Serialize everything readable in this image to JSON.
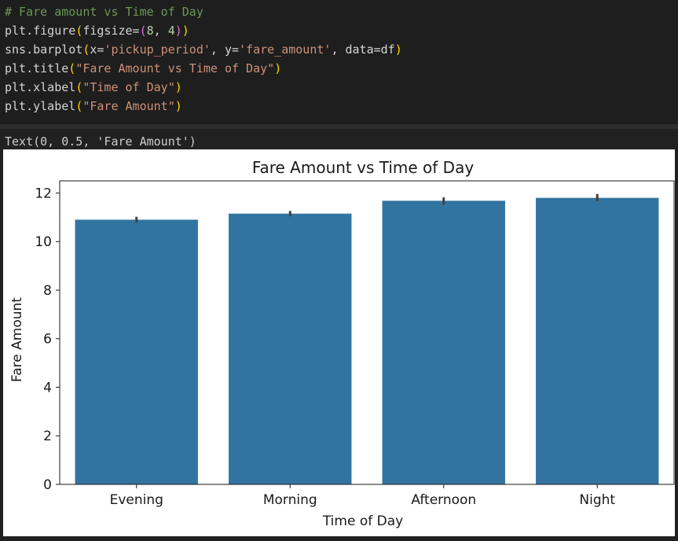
{
  "code": {
    "comment": "# Fare amount vs Time of Day",
    "line2_fn": "plt.figure",
    "line2_arg": "figsize=",
    "line2_num1": "8",
    "line2_comma": ", ",
    "line2_num2": "4",
    "line3_fn": "sns.barplot",
    "line3_a1": "x=",
    "line3_s1": "'pickup_period'",
    "line3_a2": ", y=",
    "line3_s2": "'fare_amount'",
    "line3_a3": ", data=df",
    "line4_fn": "plt.title",
    "line4_s": "\"Fare Amount vs Time of Day\"",
    "line5_fn": "plt.xlabel",
    "line5_s": "\"Time of Day\"",
    "line6_fn": "plt.ylabel",
    "line6_s": "\"Fare Amount\""
  },
  "output": {
    "text": "Text(0, 0.5, 'Fare Amount')"
  },
  "colors": {
    "bar": "#3274a1",
    "errorbar": "#424242"
  },
  "chart_data": {
    "type": "bar",
    "title": "Fare Amount vs Time of Day",
    "xlabel": "Time of Day",
    "ylabel": "Fare Amount",
    "categories": [
      "Evening",
      "Morning",
      "Afternoon",
      "Night"
    ],
    "values": [
      10.9,
      11.15,
      11.68,
      11.8
    ],
    "error_low": [
      10.78,
      11.04,
      11.52,
      11.66
    ],
    "error_high": [
      11.02,
      11.26,
      11.82,
      11.96
    ],
    "ylim": [
      0,
      12.5
    ],
    "yticks": [
      0,
      2,
      4,
      6,
      8,
      10,
      12
    ],
    "grid": false,
    "legend": "none"
  }
}
